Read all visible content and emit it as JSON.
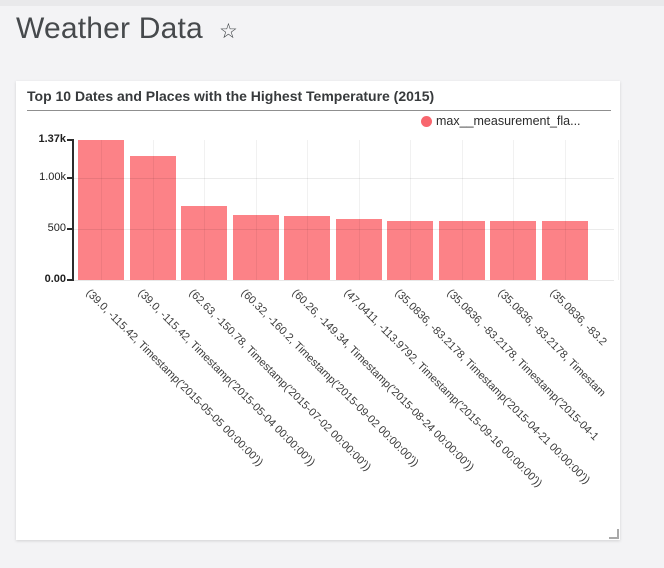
{
  "page": {
    "title": "Weather Data",
    "star_icon": "☆"
  },
  "chart_data": {
    "type": "bar",
    "title": "Top 10 Dates and Places with the Highest Temperature (2015)",
    "legend_label": "max__measurement_fla...",
    "legend_position": "top-right",
    "bar_color": "#fc8287",
    "legend_dot_color": "#f8666e",
    "grid": true,
    "ylim": [
      0,
      1370
    ],
    "y_ticks": [
      {
        "label": "1.37k",
        "value": 1370
      },
      {
        "label": "1.00k",
        "value": 1000
      },
      {
        "label": "500",
        "value": 500
      },
      {
        "label": "0.00",
        "value": 0
      }
    ],
    "categories": [
      "(39.0, -115.42, Timestamp('2015-05-05 00:00:00'))",
      "(39.0, -115.42, Timestamp('2015-05-04 00:00:00'))",
      "(62.63, -150.78, Timestamp('2015-07-02 00:00:00'))",
      "(60.32, -160.2, Timestamp('2015-09-02 00:00:00'))",
      "(60.26, -149.34, Timestamp('2015-08-24 00:00:00'))",
      "(47.0411, -113.9792, Timestamp('2015-09-16 00:00:00'))",
      "(35.0836, -83.2178, Timestamp('2015-04-21 00:00:00'))",
      "(35.0836, -83.2178, Timestamp('2015-04-1",
      "(35.0836, -83.2178, Timestam",
      "(35.0836, -83.2"
    ],
    "series": [
      {
        "name": "max__measurement_fla...",
        "values": [
          1370,
          1210,
          725,
          640,
          630,
          595,
          582,
          582,
          582,
          582
        ]
      }
    ]
  }
}
